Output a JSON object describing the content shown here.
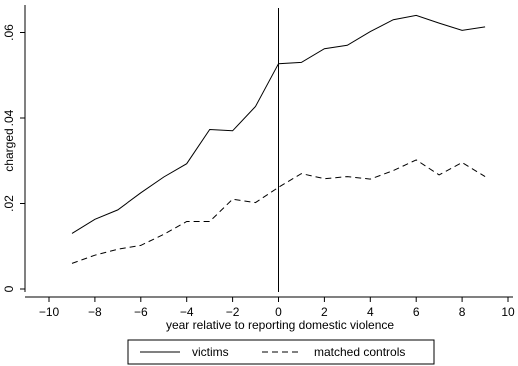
{
  "chart_data": {
    "type": "line",
    "xlabel": "year relative to reporting domestic violence",
    "ylabel": "charged",
    "xlim": [
      -10,
      10
    ],
    "ylim": [
      0,
      0.065
    ],
    "x_ticks": [
      -10,
      -8,
      -6,
      -4,
      -2,
      0,
      2,
      4,
      6,
      8,
      10
    ],
    "x_tick_labels": [
      "−10",
      "−8",
      "−6",
      "−4",
      "−2",
      "0",
      "2",
      "4",
      "6",
      "8",
      "10"
    ],
    "y_ticks": [
      0,
      0.02,
      0.04,
      0.06
    ],
    "y_tick_labels": [
      "0",
      ".02",
      ".04",
      ".06"
    ],
    "reference_line_x": 0,
    "grid": false,
    "legend_position": "bottom",
    "x": [
      -9,
      -8,
      -7,
      -6,
      -5,
      -4,
      -3,
      -2,
      -1,
      0,
      1,
      2,
      3,
      4,
      5,
      6,
      7,
      8,
      9
    ],
    "series": [
      {
        "name": "victims",
        "style": "solid",
        "color": "#000000",
        "values": [
          0.013,
          0.0163,
          0.0185,
          0.0225,
          0.0262,
          0.0293,
          0.0373,
          0.037,
          0.0427,
          0.0527,
          0.053,
          0.0562,
          0.057,
          0.0602,
          0.063,
          0.064,
          0.0622,
          0.0605,
          0.0613
        ]
      },
      {
        "name": "matched controls",
        "style": "dashed",
        "color": "#000000",
        "values": [
          0.006,
          0.0079,
          0.0093,
          0.0102,
          0.0128,
          0.0158,
          0.0158,
          0.021,
          0.0202,
          0.0238,
          0.027,
          0.0258,
          0.0263,
          0.0257,
          0.0277,
          0.0302,
          0.0267,
          0.0296,
          0.0263
        ]
      }
    ]
  }
}
